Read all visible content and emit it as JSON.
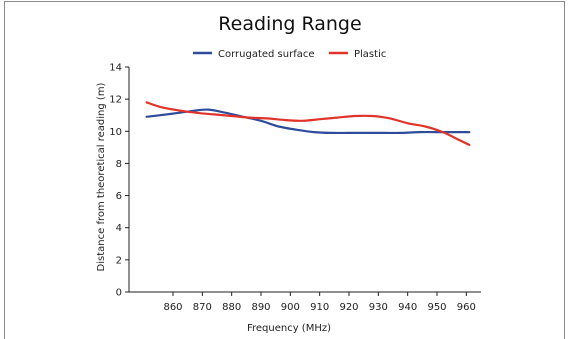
{
  "chart_data": {
    "type": "line",
    "title": "Reading Range",
    "xlabel": "Frequency (MHz)",
    "ylabel": "Distance from theoretical reading (m)",
    "xlim": [
      845,
      965
    ],
    "ylim": [
      0,
      14
    ],
    "x_ticks": [
      860,
      870,
      880,
      890,
      900,
      910,
      920,
      930,
      940,
      950,
      960
    ],
    "y_ticks": [
      0,
      2,
      4,
      6,
      8,
      10,
      12,
      14
    ],
    "grid": false,
    "legend_position": "top-center",
    "series": [
      {
        "name": "Corrugated surface",
        "color": "#2f4b9c",
        "x": [
          851,
          860,
          866,
          872,
          878,
          884,
          890,
          896,
          902,
          908,
          914,
          920,
          926,
          932,
          938,
          944,
          950,
          956,
          961
        ],
        "values": [
          10.9,
          11.1,
          11.25,
          11.35,
          11.15,
          10.9,
          10.65,
          10.3,
          10.1,
          9.95,
          9.9,
          9.9,
          9.9,
          9.9,
          9.9,
          9.95,
          9.95,
          9.95,
          9.95
        ]
      },
      {
        "name": "Plastic",
        "color": "#e0342a",
        "x": [
          851,
          856,
          862,
          868,
          874,
          880,
          886,
          892,
          898,
          904,
          910,
          916,
          922,
          928,
          934,
          940,
          946,
          952,
          956,
          961
        ],
        "values": [
          11.8,
          11.5,
          11.3,
          11.15,
          11.05,
          10.95,
          10.85,
          10.8,
          10.7,
          10.65,
          10.75,
          10.85,
          10.95,
          10.95,
          10.8,
          10.5,
          10.3,
          9.95,
          9.6,
          9.15
        ]
      }
    ]
  }
}
